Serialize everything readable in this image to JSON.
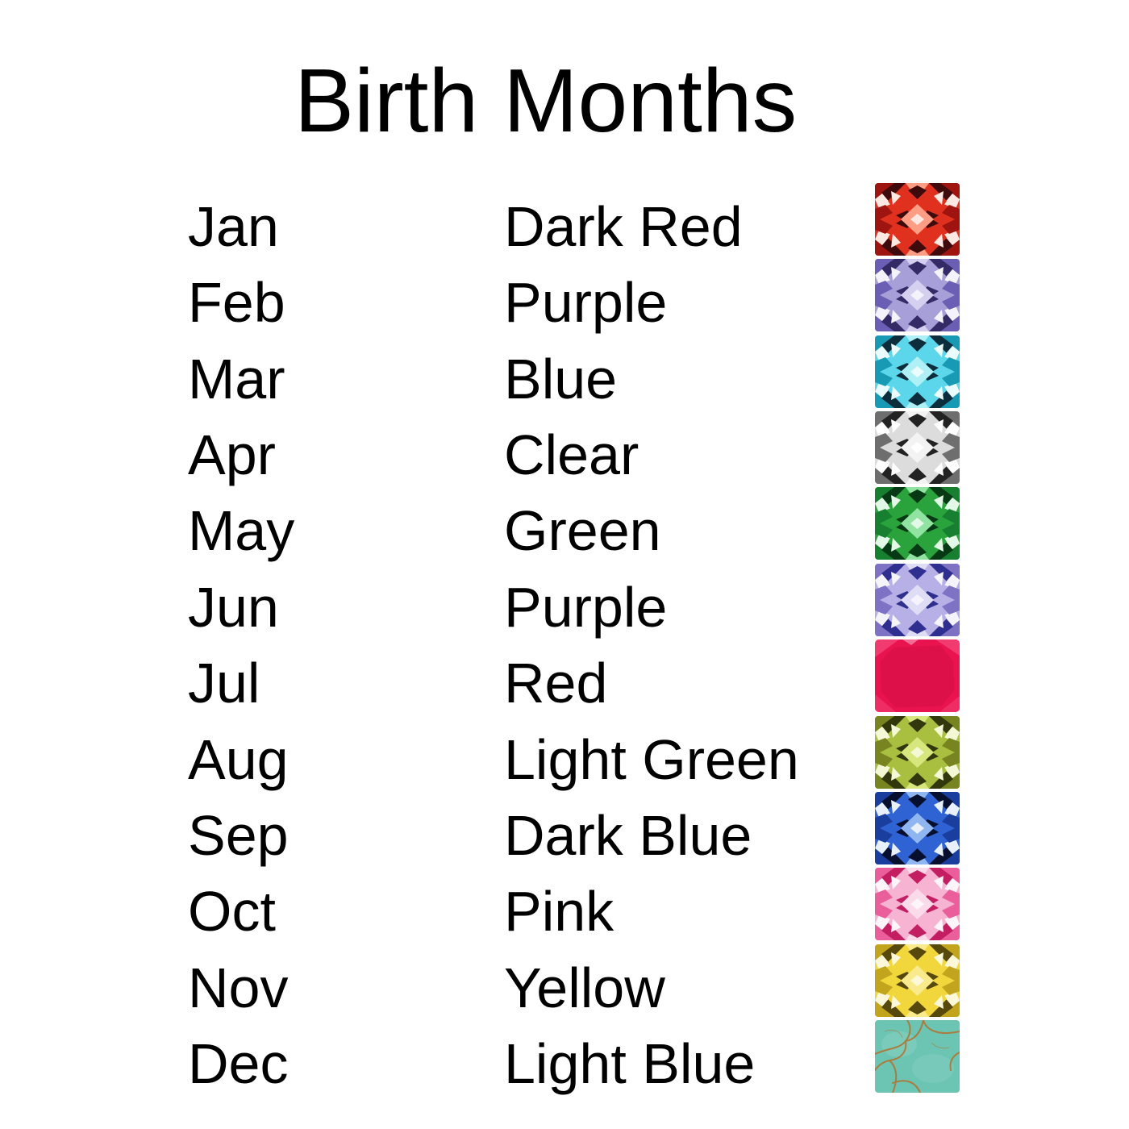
{
  "title": "Birth Months",
  "colors": {
    "background": "#ffffff",
    "text": "#000000"
  },
  "rows": [
    {
      "month": "Jan",
      "color_name": "Dark Red",
      "gem_icon": "dark-red-faceted-gem-icon",
      "gem_style": "faceted",
      "palette": [
        "#3f0a0c",
        "#9e1411",
        "#e0311f",
        "#ff9d85",
        "#ffe9e2"
      ]
    },
    {
      "month": "Feb",
      "color_name": "Purple",
      "gem_icon": "purple-faceted-gem-icon",
      "gem_style": "faceted",
      "palette": [
        "#332a66",
        "#6a5fb4",
        "#a79fd8",
        "#d5d0f0",
        "#f4f2fb"
      ]
    },
    {
      "month": "Mar",
      "color_name": "Blue",
      "gem_icon": "blue-faceted-gem-icon",
      "gem_style": "faceted",
      "palette": [
        "#0c2e3c",
        "#1899b4",
        "#5cd6ea",
        "#aff0f6",
        "#eafcfd"
      ]
    },
    {
      "month": "Apr",
      "color_name": "Clear",
      "gem_icon": "clear-faceted-gem-icon",
      "gem_style": "faceted",
      "palette": [
        "#222222",
        "#6e6e6e",
        "#dcdcdc",
        "#f3f3f3",
        "#ffffff"
      ]
    },
    {
      "month": "May",
      "color_name": "Green",
      "gem_icon": "green-faceted-gem-icon",
      "gem_style": "faceted",
      "palette": [
        "#063a14",
        "#168030",
        "#2aa33c",
        "#90e3a1",
        "#e3f9e7"
      ]
    },
    {
      "month": "Jun",
      "color_name": "Purple",
      "gem_icon": "light-purple-faceted-gem-icon",
      "gem_style": "faceted",
      "palette": [
        "#2e2f8f",
        "#7d72c4",
        "#b6b0e6",
        "#dfdcf5",
        "#f5f4fb"
      ]
    },
    {
      "month": "Jul",
      "color_name": "Red",
      "gem_icon": "red-flat-gem-icon",
      "gem_style": "flat",
      "palette": [
        "#8f0a30",
        "#c80d40",
        "#e8134f",
        "#f4487a",
        "#fba8c2"
      ]
    },
    {
      "month": "Aug",
      "color_name": "Light Green",
      "gem_icon": "light-green-faceted-gem-icon",
      "gem_style": "faceted",
      "palette": [
        "#33380c",
        "#77841f",
        "#a9bf3f",
        "#d8e67e",
        "#f5f8d5"
      ]
    },
    {
      "month": "Sep",
      "color_name": "Dark Blue",
      "gem_icon": "dark-blue-faceted-gem-icon",
      "gem_style": "faceted",
      "palette": [
        "#06102e",
        "#1a3e9e",
        "#2f63d4",
        "#8fb6f0",
        "#e8f0fc"
      ]
    },
    {
      "month": "Oct",
      "color_name": "Pink",
      "gem_icon": "pink-faceted-gem-icon",
      "gem_style": "faceted",
      "palette": [
        "#c41e62",
        "#ea5f9b",
        "#f6b3d2",
        "#fbdaea",
        "#fef5fa"
      ]
    },
    {
      "month": "Nov",
      "color_name": "Yellow",
      "gem_icon": "yellow-faceted-gem-icon",
      "gem_style": "faceted",
      "palette": [
        "#57480b",
        "#c3a51d",
        "#f1d63c",
        "#f9ea8b",
        "#fdf8da"
      ]
    },
    {
      "month": "Dec",
      "color_name": "Light Blue",
      "gem_icon": "turquoise-veined-gem-icon",
      "gem_style": "veined",
      "palette": [
        "#3f9a8a",
        "#53b3a2",
        "#6cc4b2",
        "#8ed4c6",
        "#b5702c"
      ]
    }
  ]
}
